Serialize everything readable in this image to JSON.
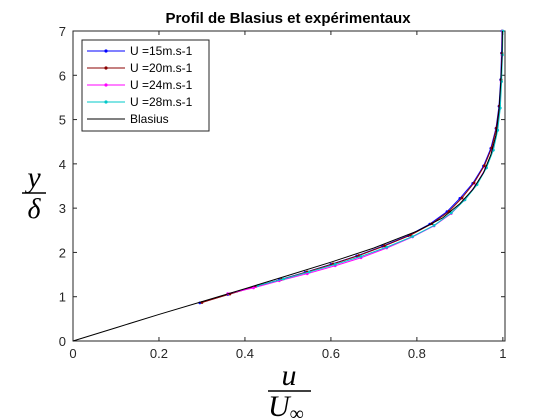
{
  "chart_data": {
    "type": "line",
    "title": "Profil de Blasius et expérimentaux",
    "xlabel": {
      "numerator": "u",
      "denominator_main": "U",
      "denominator_sub": "∞"
    },
    "ylabel": {
      "numerator": "y",
      "denominator": "δ"
    },
    "xlim": [
      0,
      1.005
    ],
    "ylim": [
      0,
      7
    ],
    "xticks": [
      0,
      0.2,
      0.4,
      0.6,
      0.8,
      1
    ],
    "xtick_labels": [
      "0",
      "0.2",
      "0.4",
      "0.6",
      "0.8",
      "1"
    ],
    "yticks": [
      0,
      1,
      2,
      3,
      4,
      5,
      6,
      7
    ],
    "ytick_labels": [
      "0",
      "1",
      "2",
      "3",
      "4",
      "5",
      "6",
      "7"
    ],
    "grid": false,
    "legend_position": "top-left",
    "series": [
      {
        "name": "U =15m.s-1",
        "color": "#0000ff",
        "points": [
          [
            0.295,
            0.86
          ],
          [
            0.36,
            1.05
          ],
          [
            0.42,
            1.22
          ],
          [
            0.48,
            1.38
          ],
          [
            0.54,
            1.55
          ],
          [
            0.6,
            1.73
          ],
          [
            0.66,
            1.92
          ],
          [
            0.72,
            2.14
          ],
          [
            0.78,
            2.38
          ],
          [
            0.83,
            2.64
          ],
          [
            0.87,
            2.92
          ],
          [
            0.9,
            3.22
          ],
          [
            0.93,
            3.56
          ],
          [
            0.955,
            3.95
          ],
          [
            0.972,
            4.35
          ],
          [
            0.984,
            4.8
          ],
          [
            0.991,
            5.3
          ],
          [
            0.995,
            5.9
          ],
          [
            0.997,
            6.5
          ],
          [
            0.998,
            7.0
          ]
        ]
      },
      {
        "name": "U =20m.s-1",
        "color": "#8b0000",
        "points": [
          [
            0.3,
            0.87
          ],
          [
            0.365,
            1.06
          ],
          [
            0.425,
            1.23
          ],
          [
            0.485,
            1.39
          ],
          [
            0.545,
            1.56
          ],
          [
            0.605,
            1.74
          ],
          [
            0.665,
            1.93
          ],
          [
            0.725,
            2.15
          ],
          [
            0.785,
            2.39
          ],
          [
            0.835,
            2.65
          ],
          [
            0.875,
            2.93
          ],
          [
            0.905,
            3.23
          ],
          [
            0.933,
            3.57
          ],
          [
            0.957,
            3.96
          ],
          [
            0.974,
            4.36
          ],
          [
            0.985,
            4.81
          ],
          [
            0.992,
            5.31
          ],
          [
            0.996,
            5.9
          ],
          [
            0.998,
            6.5
          ],
          [
            0.999,
            7.0
          ]
        ]
      },
      {
        "name": "U =24m.s-1",
        "color": "#ff00ff",
        "points": [
          [
            0.36,
            1.07
          ],
          [
            0.42,
            1.2
          ],
          [
            0.48,
            1.36
          ],
          [
            0.545,
            1.52
          ],
          [
            0.61,
            1.7
          ],
          [
            0.67,
            1.88
          ],
          [
            0.73,
            2.1
          ],
          [
            0.79,
            2.35
          ],
          [
            0.84,
            2.6
          ],
          [
            0.88,
            2.88
          ],
          [
            0.91,
            3.18
          ],
          [
            0.937,
            3.52
          ],
          [
            0.96,
            3.9
          ],
          [
            0.976,
            4.3
          ],
          [
            0.987,
            4.75
          ],
          [
            0.993,
            5.25
          ],
          [
            0.996,
            5.85
          ],
          [
            0.998,
            6.45
          ],
          [
            0.999,
            7.0
          ]
        ]
      },
      {
        "name": "U =28m.s-1",
        "color": "#00c8c8",
        "points": [
          [
            0.43,
            1.25
          ],
          [
            0.49,
            1.4
          ],
          [
            0.55,
            1.56
          ],
          [
            0.61,
            1.73
          ],
          [
            0.67,
            1.91
          ],
          [
            0.73,
            2.12
          ],
          [
            0.79,
            2.36
          ],
          [
            0.84,
            2.61
          ],
          [
            0.88,
            2.89
          ],
          [
            0.912,
            3.19
          ],
          [
            0.94,
            3.53
          ],
          [
            0.962,
            3.91
          ],
          [
            0.978,
            4.31
          ],
          [
            0.988,
            4.76
          ],
          [
            0.994,
            5.26
          ],
          [
            0.997,
            5.86
          ],
          [
            0.999,
            6.46
          ],
          [
            1.0,
            7.0
          ]
        ]
      },
      {
        "name": "Blasius",
        "color": "#000000",
        "points": [
          [
            0,
            0
          ],
          [
            0.1,
            0.3
          ],
          [
            0.2,
            0.6
          ],
          [
            0.3,
            0.89
          ],
          [
            0.4,
            1.18
          ],
          [
            0.5,
            1.48
          ],
          [
            0.6,
            1.78
          ],
          [
            0.7,
            2.1
          ],
          [
            0.8,
            2.48
          ],
          [
            0.86,
            2.78
          ],
          [
            0.9,
            3.1
          ],
          [
            0.93,
            3.42
          ],
          [
            0.955,
            3.8
          ],
          [
            0.972,
            4.2
          ],
          [
            0.984,
            4.65
          ],
          [
            0.991,
            5.2
          ],
          [
            0.995,
            5.8
          ],
          [
            0.998,
            6.4
          ],
          [
            0.999,
            7.0
          ]
        ]
      }
    ]
  }
}
